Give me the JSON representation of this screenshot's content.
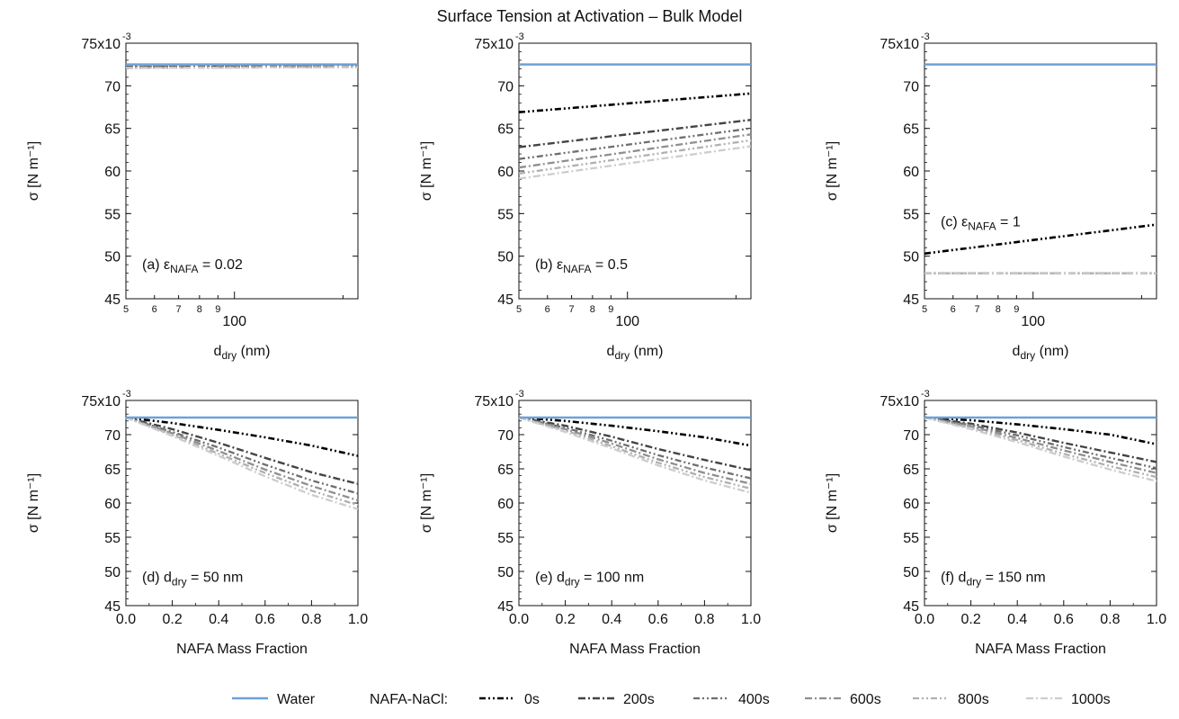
{
  "figure": {
    "title": "Surface Tension at Activation – Bulk Model",
    "water_color": "#6ea0d8",
    "series_colors": [
      "#000000",
      "#444444",
      "#6e6e6e",
      "#8f8f8f",
      "#b0b0b0",
      "#cdcdcd"
    ]
  },
  "legend": {
    "water_label": "Water",
    "group_label": "NAFA-NaCl:",
    "series_labels": [
      "0s",
      "200s",
      "400s",
      "600s",
      "800s",
      "1000s"
    ]
  },
  "chart_data": [
    {
      "id": "a",
      "type": "line",
      "annotation_prefix": "(a) ε",
      "annotation_sub": "NAFA",
      "annotation_suffix": " = 0.02",
      "xlabel_main": "d",
      "xlabel_sub": "dry",
      "xlabel_suffix": " (nm)",
      "xscale": "log",
      "xlim": [
        50,
        220
      ],
      "xticks_major": [
        {
          "value": 100,
          "label": "100"
        }
      ],
      "xticks_minor": [
        {
          "value": 50,
          "label": "5"
        },
        {
          "value": 60,
          "label": "6"
        },
        {
          "value": 70,
          "label": "7"
        },
        {
          "value": 80,
          "label": "8"
        },
        {
          "value": 90,
          "label": "9"
        }
      ],
      "ylabel": "σ [N m⁻¹]",
      "ylim": [
        0.045,
        0.075
      ],
      "yticks": [
        "45",
        "50",
        "55",
        "60",
        "65",
        "70",
        "75x10"
      ],
      "ytick_top_exponent": "-3",
      "water": 0.0725,
      "series": [
        {
          "x": [
            50,
            220
          ],
          "y": [
            0.0722,
            0.0723
          ]
        },
        {
          "x": [
            50,
            220
          ],
          "y": [
            0.0722,
            0.0723
          ]
        },
        {
          "x": [
            50,
            220
          ],
          "y": [
            0.0722,
            0.0723
          ]
        },
        {
          "x": [
            50,
            220
          ],
          "y": [
            0.0721,
            0.0722
          ]
        },
        {
          "x": [
            50,
            220
          ],
          "y": [
            0.0721,
            0.0722
          ]
        },
        {
          "x": [
            50,
            220
          ],
          "y": [
            0.0721,
            0.0722
          ]
        }
      ]
    },
    {
      "id": "b",
      "type": "line",
      "annotation_prefix": "(b) ε",
      "annotation_sub": "NAFA",
      "annotation_suffix": " = 0.5",
      "xlabel_main": "d",
      "xlabel_sub": "dry",
      "xlabel_suffix": " (nm)",
      "xscale": "log",
      "xlim": [
        50,
        220
      ],
      "xticks_major": [
        {
          "value": 100,
          "label": "100"
        }
      ],
      "xticks_minor": [
        {
          "value": 50,
          "label": "5"
        },
        {
          "value": 60,
          "label": "6"
        },
        {
          "value": 70,
          "label": "7"
        },
        {
          "value": 80,
          "label": "8"
        },
        {
          "value": 90,
          "label": "9"
        }
      ],
      "ylabel": "σ [N m⁻¹]",
      "ylim": [
        0.045,
        0.075
      ],
      "yticks": [
        "45",
        "50",
        "55",
        "60",
        "65",
        "70",
        "75x10"
      ],
      "ytick_top_exponent": "-3",
      "water": 0.0725,
      "series": [
        {
          "x": [
            50,
            220
          ],
          "y": [
            0.0669,
            0.0691
          ]
        },
        {
          "x": [
            50,
            220
          ],
          "y": [
            0.0628,
            0.066
          ]
        },
        {
          "x": [
            50,
            220
          ],
          "y": [
            0.0614,
            0.065
          ]
        },
        {
          "x": [
            50,
            220
          ],
          "y": [
            0.0604,
            0.0643
          ]
        },
        {
          "x": [
            50,
            220
          ],
          "y": [
            0.0597,
            0.0636
          ]
        },
        {
          "x": [
            50,
            220
          ],
          "y": [
            0.0591,
            0.0629
          ]
        }
      ]
    },
    {
      "id": "c",
      "type": "line",
      "annotation_prefix": "(c) ε",
      "annotation_sub": "NAFA",
      "annotation_suffix": " = 1",
      "xlabel_main": "d",
      "xlabel_sub": "dry",
      "xlabel_suffix": " (nm)",
      "xscale": "log",
      "xlim": [
        50,
        220
      ],
      "xticks_major": [
        {
          "value": 100,
          "label": "100"
        }
      ],
      "xticks_minor": [
        {
          "value": 50,
          "label": "5"
        },
        {
          "value": 60,
          "label": "6"
        },
        {
          "value": 70,
          "label": "7"
        },
        {
          "value": 80,
          "label": "8"
        },
        {
          "value": 90,
          "label": "9"
        }
      ],
      "ylabel": "σ [N m⁻¹]",
      "ylim": [
        0.045,
        0.075
      ],
      "yticks": [
        "45",
        "50",
        "55",
        "60",
        "65",
        "70",
        "75x10"
      ],
      "ytick_top_exponent": "-3",
      "water": 0.0725,
      "series": [
        {
          "x": [
            50,
            220
          ],
          "y": [
            0.0503,
            0.0537
          ]
        },
        {
          "x": [
            50,
            220
          ],
          "y": [
            0.048,
            0.048
          ]
        },
        {
          "x": [
            50,
            220
          ],
          "y": [
            0.048,
            0.048
          ]
        },
        {
          "x": [
            50,
            220
          ],
          "y": [
            0.048,
            0.048
          ]
        },
        {
          "x": [
            50,
            220
          ],
          "y": [
            0.048,
            0.048
          ]
        },
        {
          "x": [
            50,
            220
          ],
          "y": [
            0.048,
            0.048
          ]
        }
      ]
    },
    {
      "id": "d",
      "type": "line",
      "annotation_prefix": "(d) d",
      "annotation_sub": "dry",
      "annotation_suffix": " = 50 nm",
      "xlabel_main": "NAFA Mass Fraction",
      "xlabel_sub": "",
      "xlabel_suffix": "",
      "xscale": "linear",
      "xlim": [
        0,
        1
      ],
      "xticks": [
        "0.0",
        "0.2",
        "0.4",
        "0.6",
        "0.8",
        "1.0"
      ],
      "ylabel": "σ [N m⁻¹]",
      "ylim": [
        0.045,
        0.075
      ],
      "yticks": [
        "45",
        "50",
        "55",
        "60",
        "65",
        "70",
        "75x10"
      ],
      "ytick_top_exponent": "-3",
      "water": 0.0725,
      "series": [
        {
          "x": [
            0,
            0.2,
            0.4,
            0.6,
            0.8,
            1.0
          ],
          "y": [
            0.0725,
            0.0717,
            0.0707,
            0.0696,
            0.0684,
            0.0669
          ]
        },
        {
          "x": [
            0,
            0.2,
            0.4,
            0.6,
            0.8,
            1.0
          ],
          "y": [
            0.0725,
            0.0708,
            0.0688,
            0.0666,
            0.0645,
            0.0628
          ]
        },
        {
          "x": [
            0,
            0.2,
            0.4,
            0.6,
            0.8,
            1.0
          ],
          "y": [
            0.0725,
            0.0704,
            0.0681,
            0.0656,
            0.0633,
            0.0614
          ]
        },
        {
          "x": [
            0,
            0.2,
            0.4,
            0.6,
            0.8,
            1.0
          ],
          "y": [
            0.0725,
            0.0702,
            0.0676,
            0.0649,
            0.0625,
            0.0604
          ]
        },
        {
          "x": [
            0,
            0.2,
            0.4,
            0.6,
            0.8,
            1.0
          ],
          "y": [
            0.0725,
            0.07,
            0.0672,
            0.0644,
            0.0618,
            0.0597
          ]
        },
        {
          "x": [
            0,
            0.2,
            0.4,
            0.6,
            0.8,
            1.0
          ],
          "y": [
            0.0725,
            0.0698,
            0.0669,
            0.0639,
            0.0612,
            0.0591
          ]
        }
      ]
    },
    {
      "id": "e",
      "type": "line",
      "annotation_prefix": "(e) d",
      "annotation_sub": "dry",
      "annotation_suffix": " = 100 nm",
      "xlabel_main": "NAFA Mass Fraction",
      "xlabel_sub": "",
      "xlabel_suffix": "",
      "xscale": "linear",
      "xlim": [
        0,
        1
      ],
      "xticks": [
        "0.0",
        "0.2",
        "0.4",
        "0.6",
        "0.8",
        "1.0"
      ],
      "ylabel": "σ [N m⁻¹]",
      "ylim": [
        0.045,
        0.075
      ],
      "yticks": [
        "45",
        "50",
        "55",
        "60",
        "65",
        "70",
        "75x10"
      ],
      "ytick_top_exponent": "-3",
      "water": 0.0725,
      "series": [
        {
          "x": [
            0,
            0.2,
            0.4,
            0.6,
            0.8,
            1.0
          ],
          "y": [
            0.0725,
            0.072,
            0.0713,
            0.0705,
            0.0696,
            0.0684
          ]
        },
        {
          "x": [
            0,
            0.2,
            0.4,
            0.6,
            0.8,
            1.0
          ],
          "y": [
            0.0725,
            0.0713,
            0.0697,
            0.0679,
            0.0663,
            0.0648
          ]
        },
        {
          "x": [
            0,
            0.2,
            0.4,
            0.6,
            0.8,
            1.0
          ],
          "y": [
            0.0725,
            0.071,
            0.0691,
            0.067,
            0.0652,
            0.0636
          ]
        },
        {
          "x": [
            0,
            0.2,
            0.4,
            0.6,
            0.8,
            1.0
          ],
          "y": [
            0.0725,
            0.0708,
            0.0687,
            0.0664,
            0.0644,
            0.0628
          ]
        },
        {
          "x": [
            0,
            0.2,
            0.4,
            0.6,
            0.8,
            1.0
          ],
          "y": [
            0.0725,
            0.0706,
            0.0683,
            0.0659,
            0.0638,
            0.0621
          ]
        },
        {
          "x": [
            0,
            0.2,
            0.4,
            0.6,
            0.8,
            1.0
          ],
          "y": [
            0.0725,
            0.0704,
            0.068,
            0.0655,
            0.0633,
            0.0615
          ]
        }
      ]
    },
    {
      "id": "f",
      "type": "line",
      "annotation_prefix": "(f) d",
      "annotation_sub": "dry",
      "annotation_suffix": " = 150 nm",
      "xlabel_main": "NAFA Mass Fraction",
      "xlabel_sub": "",
      "xlabel_suffix": "",
      "xscale": "linear",
      "xlim": [
        0,
        1
      ],
      "xticks": [
        "0.0",
        "0.2",
        "0.4",
        "0.6",
        "0.8",
        "1.0"
      ],
      "ylabel": "σ [N m⁻¹]",
      "ylim": [
        0.045,
        0.075
      ],
      "yticks": [
        "45",
        "50",
        "55",
        "60",
        "65",
        "70",
        "75x10"
      ],
      "ytick_top_exponent": "-3",
      "water": 0.0725,
      "series": [
        {
          "x": [
            0,
            0.2,
            0.4,
            0.6,
            0.8,
            1.0
          ],
          "y": [
            0.0725,
            0.0721,
            0.0715,
            0.0708,
            0.07,
            0.0686
          ]
        },
        {
          "x": [
            0,
            0.2,
            0.4,
            0.6,
            0.8,
            1.0
          ],
          "y": [
            0.0725,
            0.0716,
            0.0703,
            0.0688,
            0.0674,
            0.066
          ]
        },
        {
          "x": [
            0,
            0.2,
            0.4,
            0.6,
            0.8,
            1.0
          ],
          "y": [
            0.0725,
            0.0714,
            0.0699,
            0.0682,
            0.0666,
            0.0651
          ]
        },
        {
          "x": [
            0,
            0.2,
            0.4,
            0.6,
            0.8,
            1.0
          ],
          "y": [
            0.0725,
            0.0712,
            0.0695,
            0.0677,
            0.066,
            0.0644
          ]
        },
        {
          "x": [
            0,
            0.2,
            0.4,
            0.6,
            0.8,
            1.0
          ],
          "y": [
            0.0725,
            0.071,
            0.0692,
            0.0672,
            0.0654,
            0.0638
          ]
        },
        {
          "x": [
            0,
            0.2,
            0.4,
            0.6,
            0.8,
            1.0
          ],
          "y": [
            0.0725,
            0.0708,
            0.0689,
            0.0668,
            0.0649,
            0.0632
          ]
        }
      ]
    }
  ]
}
